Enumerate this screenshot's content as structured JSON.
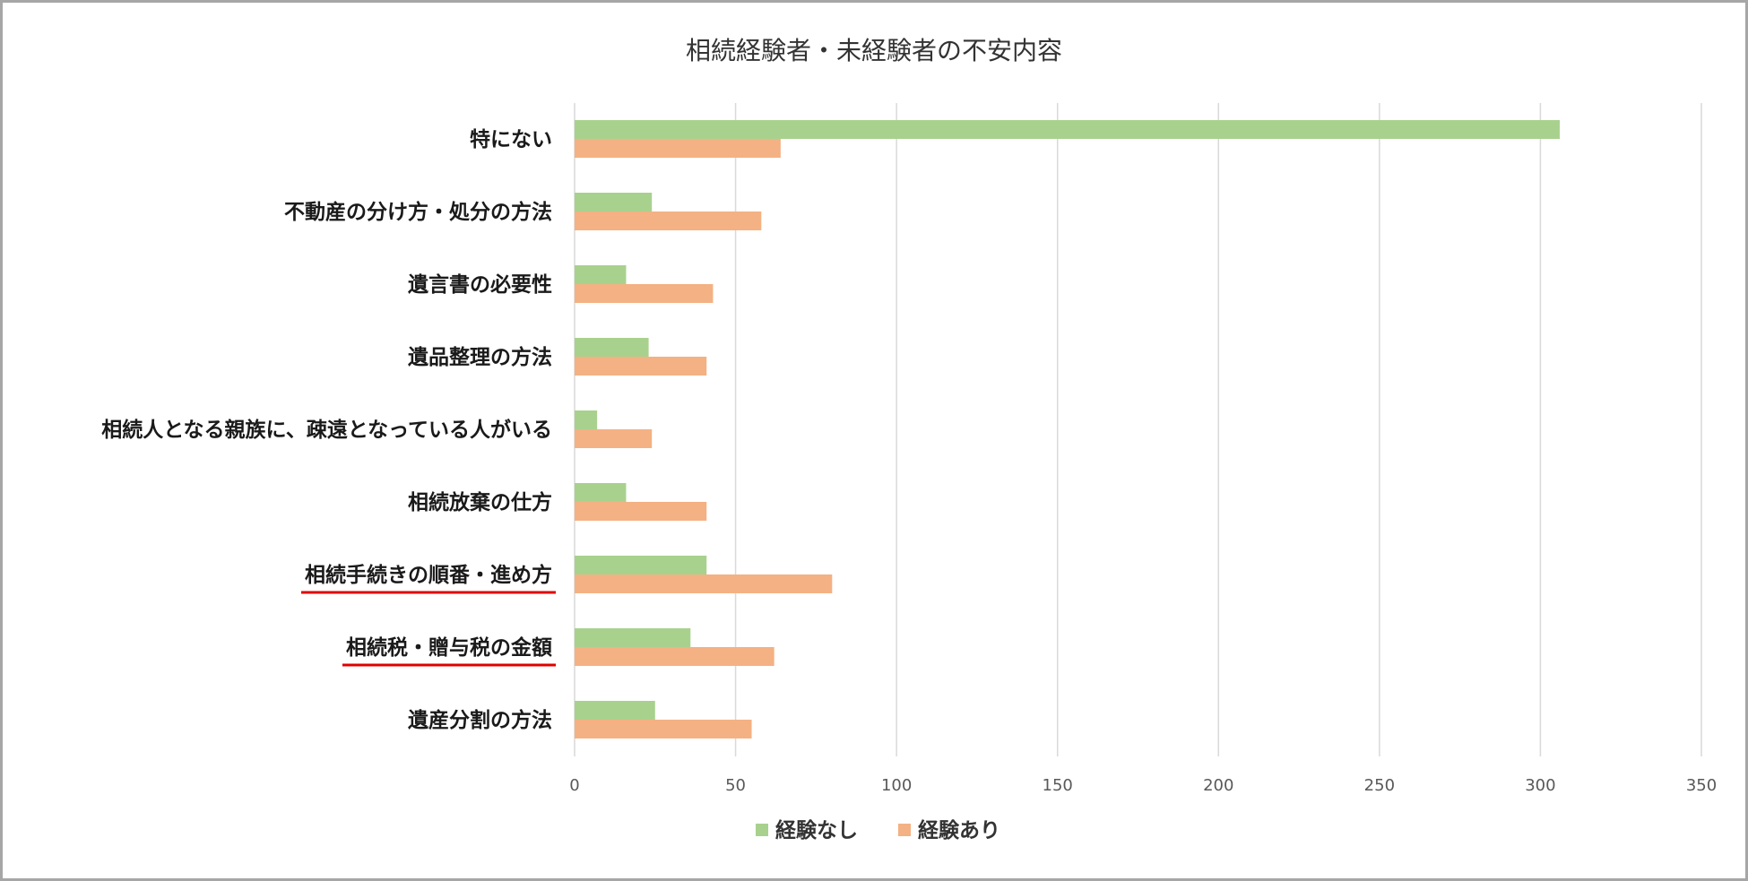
{
  "chart_data": {
    "type": "bar",
    "orientation": "horizontal",
    "title": "相続経験者・未経験者の不安内容",
    "categories": [
      "特にない",
      "不動産の分け方・処分の方法",
      "遺言書の必要性",
      "遺品整理の方法",
      "相続人となる親族に、疎遠となっている人がいる",
      "相続放棄の仕方",
      "相続手続きの順番・進め方",
      "相続税・贈与税の金額",
      "遺産分割の方法"
    ],
    "series": [
      {
        "name": "経験なし",
        "color": "#a9d18e",
        "values": [
          306,
          24,
          16,
          23,
          7,
          16,
          41,
          36,
          25
        ]
      },
      {
        "name": "経験あり",
        "color": "#f4b183",
        "values": [
          64,
          58,
          43,
          41,
          24,
          41,
          80,
          62,
          55
        ]
      }
    ],
    "xlim": [
      0,
      350
    ],
    "xticks": [
      "0",
      "50",
      "100",
      "150",
      "200",
      "250",
      "300",
      "350"
    ],
    "grid": true,
    "legend_position": "bottom",
    "highlighted_categories": [
      "相続手続きの順番・進め方",
      "相続税・贈与税の金額"
    ],
    "highlight_color": "#e00000",
    "gridline_color": "#d9d9d9"
  }
}
